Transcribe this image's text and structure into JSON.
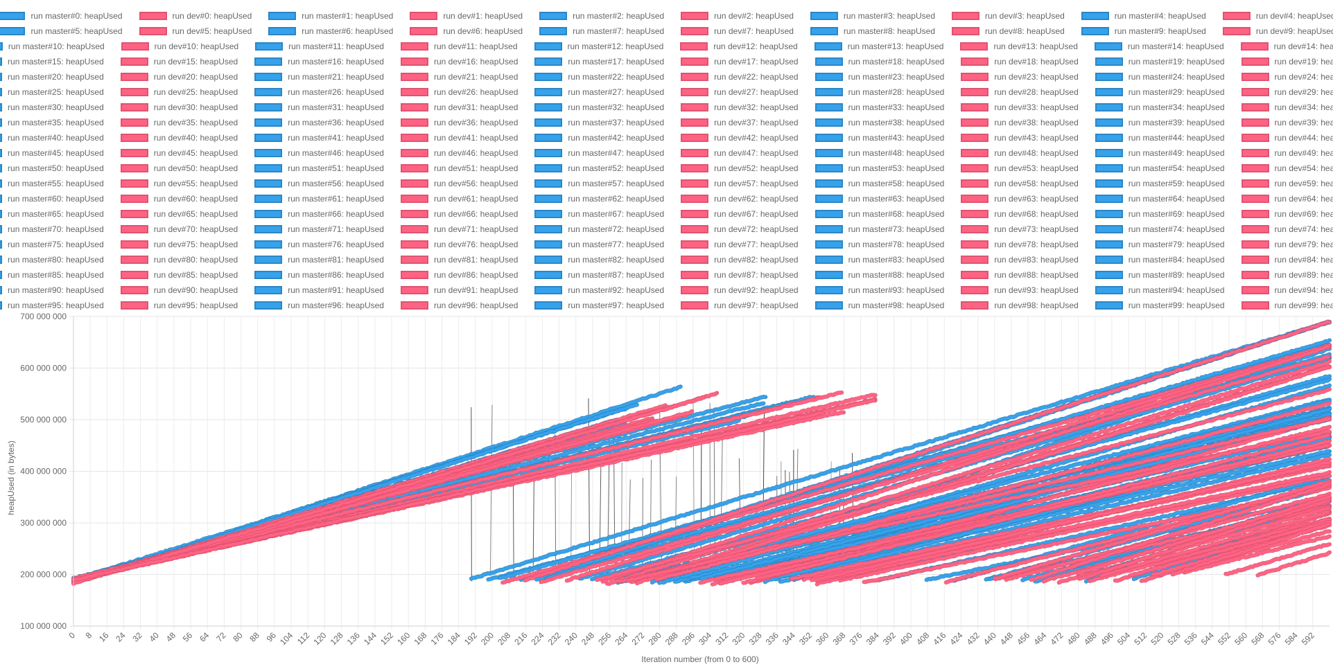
{
  "chart_data": {
    "type": "line",
    "title": "",
    "xlabel": "Iteration number (from 0 to 600)",
    "ylabel": "heapUsed (in bytes)",
    "xlim": [
      0,
      600
    ],
    "ylim": [
      100000000,
      700000000
    ],
    "x_tick_step": 8,
    "y_ticks": [
      {
        "value": 100000000,
        "label": "100 000 000"
      },
      {
        "value": 200000000,
        "label": "200 000 000"
      },
      {
        "value": 300000000,
        "label": "300 000 000"
      },
      {
        "value": 400000000,
        "label": "400 000 000"
      },
      {
        "value": 500000000,
        "label": "500 000 000"
      },
      {
        "value": 600000000,
        "label": "600 000 000"
      },
      {
        "value": 700000000,
        "label": "700 000 000"
      }
    ],
    "grid": true,
    "legend_position": "top",
    "colors": {
      "master_fill": "#36a2eb",
      "master_border": "#2b86c5",
      "dev_fill": "#ff6384",
      "dev_border": "#e0536f",
      "gc_line": "#000000"
    },
    "legend_label_pattern": {
      "master": "run master#{i}: heapUsed",
      "dev": "run dev#{i}: heapUsed"
    },
    "run_count": 100,
    "series_groups": [
      {
        "name": "run master#0..#99: heapUsed",
        "color": "#36a2eb",
        "segments_representative": [
          {
            "x": [
              0,
              290
            ],
            "y": [
              183000000,
              545000000
            ]
          },
          {
            "x": [
              0,
              355
            ],
            "y": [
              185000000,
              550000000
            ]
          },
          {
            "x": [
              190,
              600
            ],
            "y": [
              190000000,
              690000000
            ]
          },
          {
            "x": [
              215,
              600
            ],
            "y": [
              188000000,
              600000000
            ]
          },
          {
            "x": [
              260,
              600
            ],
            "y": [
              186000000,
              520000000
            ]
          },
          {
            "x": [
              300,
              600
            ],
            "y": [
              188000000,
              470000000
            ]
          },
          {
            "x": [
              420,
              600
            ],
            "y": [
              188000000,
              370000000
            ]
          }
        ]
      },
      {
        "name": "run dev#0..#99: heapUsed",
        "color": "#ff6384",
        "segments_representative": [
          {
            "x": [
              0,
              310
            ],
            "y": [
              183000000,
              545000000
            ]
          },
          {
            "x": [
              0,
              395
            ],
            "y": [
              185000000,
              560000000
            ]
          },
          {
            "x": [
              205,
              600
            ],
            "y": [
              186000000,
              640000000
            ]
          },
          {
            "x": [
              250,
              600
            ],
            "y": [
              185000000,
              530000000
            ]
          },
          {
            "x": [
              320,
              600
            ],
            "y": [
              185000000,
              450000000
            ]
          },
          {
            "x": [
              440,
              600
            ],
            "y": [
              186000000,
              380000000
            ]
          },
          {
            "x": [
              480,
              600
            ],
            "y": [
              200000000,
              340000000
            ]
          }
        ]
      }
    ]
  }
}
